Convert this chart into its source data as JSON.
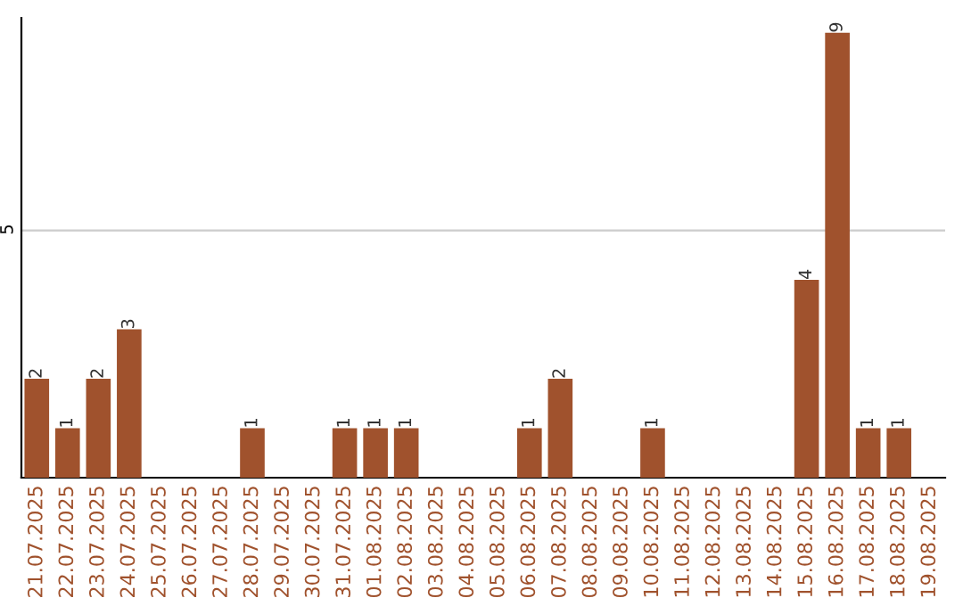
{
  "chart_data": {
    "type": "bar",
    "categories": [
      "21.07.2025",
      "22.07.2025",
      "23.07.2025",
      "24.07.2025",
      "25.07.2025",
      "26.07.2025",
      "27.07.2025",
      "28.07.2025",
      "29.07.2025",
      "30.07.2025",
      "31.07.2025",
      "01.08.2025",
      "02.08.2025",
      "03.08.2025",
      "04.08.2025",
      "05.08.2025",
      "06.08.2025",
      "07.08.2025",
      "08.08.2025",
      "09.08.2025",
      "10.08.2025",
      "11.08.2025",
      "12.08.2025",
      "13.08.2025",
      "14.08.2025",
      "15.08.2025",
      "16.08.2025",
      "17.08.2025",
      "18.08.2025",
      "19.08.2025"
    ],
    "values": [
      2,
      1,
      2,
      3,
      0,
      0,
      0,
      1,
      0,
      0,
      1,
      1,
      1,
      0,
      0,
      0,
      1,
      2,
      0,
      0,
      1,
      0,
      0,
      0,
      0,
      4,
      9,
      1,
      1,
      0
    ],
    "value_labels": [
      "2",
      "1",
      "2",
      "3",
      null,
      null,
      null,
      "1",
      null,
      null,
      "1",
      "1",
      "1",
      null,
      null,
      null,
      "1",
      "2",
      null,
      null,
      "1",
      null,
      null,
      null,
      null,
      "4",
      "9",
      "1",
      "1",
      null
    ],
    "color": "#a0522d",
    "ylim": [
      0,
      9.3
    ],
    "yticks": [
      5
    ],
    "grid": "y"
  }
}
